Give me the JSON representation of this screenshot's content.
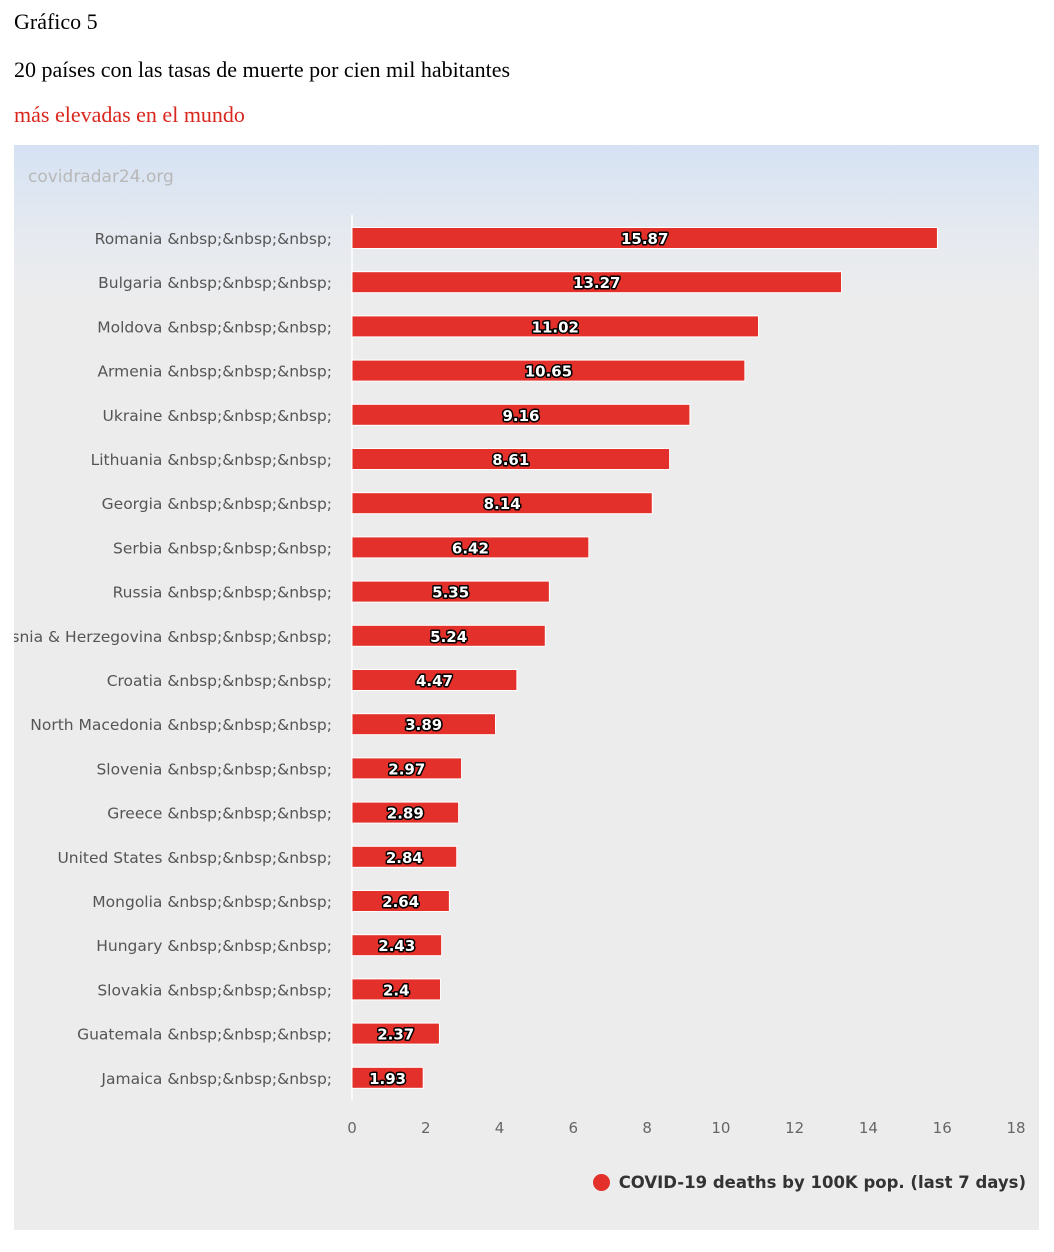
{
  "header": {
    "label": "Gráfico 5",
    "line1": "20 países con las tasas de muerte por cien mil habitantes",
    "line2": "más elevadas en el mundo"
  },
  "watermark": "covidradar24.org",
  "colors": {
    "bar": "#e3302a",
    "heading_accent": "#d9271e",
    "axis_text": "#666666",
    "category_text": "#555555"
  },
  "chart_data": {
    "type": "bar",
    "orientation": "horizontal",
    "categories": [
      "Romania &nbsp;&nbsp;&nbsp;",
      "Bulgaria &nbsp;&nbsp;&nbsp;",
      "Moldova &nbsp;&nbsp;&nbsp;",
      "Armenia &nbsp;&nbsp;&nbsp;",
      "Ukraine &nbsp;&nbsp;&nbsp;",
      "Lithuania &nbsp;&nbsp;&nbsp;",
      "Georgia &nbsp;&nbsp;&nbsp;",
      "Serbia &nbsp;&nbsp;&nbsp;",
      "Russia &nbsp;&nbsp;&nbsp;",
      "Bosnia & Herzegovina &nbsp;&nbsp;&nbsp;",
      "Croatia &nbsp;&nbsp;&nbsp;",
      "North Macedonia &nbsp;&nbsp;&nbsp;",
      "Slovenia &nbsp;&nbsp;&nbsp;",
      "Greece &nbsp;&nbsp;&nbsp;",
      "United States &nbsp;&nbsp;&nbsp;",
      "Mongolia &nbsp;&nbsp;&nbsp;",
      "Hungary &nbsp;&nbsp;&nbsp;",
      "Slovakia &nbsp;&nbsp;&nbsp;",
      "Guatemala &nbsp;&nbsp;&nbsp;",
      "Jamaica &nbsp;&nbsp;&nbsp;"
    ],
    "series": [
      {
        "name": "COVID-19 deaths by 100K pop. (last 7 days)",
        "values": [
          15.87,
          13.27,
          11.02,
          10.65,
          9.16,
          8.61,
          8.14,
          6.42,
          5.35,
          5.24,
          4.47,
          3.89,
          2.97,
          2.89,
          2.84,
          2.64,
          2.43,
          2.4,
          2.37,
          1.93
        ],
        "data_labels": [
          "15.87",
          "13.27",
          "11.02",
          "10.65",
          "9.16",
          "8.61",
          "8.14",
          "6.42",
          "5.35",
          "5.24",
          "4.47",
          "3.89",
          "2.97",
          "2.89",
          "2.84",
          "2.64",
          "2.43",
          "2.4",
          "2.37",
          "1.93"
        ]
      }
    ],
    "xlim": [
      0,
      18
    ],
    "x_ticks": [
      "0",
      "2",
      "4",
      "6",
      "8",
      "10",
      "12",
      "14",
      "16",
      "18"
    ],
    "grid": false,
    "legend_position": "bottom-right"
  }
}
